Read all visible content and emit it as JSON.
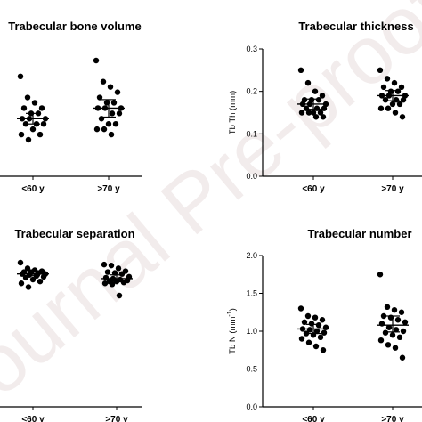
{
  "watermark": "Journal Pre-proof",
  "chart_data": [
    {
      "type": "scatter",
      "panel": "tl",
      "title": "Trabecular bone volume",
      "ylabel": "",
      "categories": [
        "<60 y",
        ">70 y"
      ],
      "ylim": [
        0,
        0.3
      ],
      "yticks": [],
      "series": [
        {
          "category": "<60 y",
          "values": [
            0.24,
            0.2,
            0.19,
            0.18,
            0.18,
            0.17,
            0.17,
            0.16,
            0.16,
            0.16,
            0.15,
            0.15,
            0.15,
            0.14,
            0.13,
            0.13,
            0.12
          ],
          "mean": 0.16,
          "sem": [
            0.15,
            0.17
          ]
        },
        {
          "category": ">70 y",
          "values": [
            0.27,
            0.23,
            0.22,
            0.21,
            0.2,
            0.19,
            0.19,
            0.18,
            0.18,
            0.18,
            0.17,
            0.17,
            0.16,
            0.15,
            0.15,
            0.14,
            0.14,
            0.13
          ],
          "mean": 0.18,
          "sem": [
            0.163,
            0.196
          ]
        }
      ]
    },
    {
      "type": "scatter",
      "panel": "tr",
      "title": "Trabecular thickness",
      "ylabel": "Tb Th (mm)",
      "categories": [
        "<60 y",
        ">70 y"
      ],
      "ylim": [
        0,
        0.3
      ],
      "yticks": [
        "0.0",
        "0.1",
        "0.2",
        "0.3"
      ],
      "series": [
        {
          "category": "<60 y",
          "values": [
            0.25,
            0.22,
            0.2,
            0.19,
            0.18,
            0.18,
            0.18,
            0.17,
            0.17,
            0.17,
            0.16,
            0.16,
            0.16,
            0.15,
            0.15,
            0.15,
            0.15,
            0.14,
            0.14
          ],
          "mean": 0.17,
          "sem": [
            0.158,
            0.182
          ]
        },
        {
          "category": ">70 y",
          "values": [
            0.25,
            0.23,
            0.22,
            0.21,
            0.21,
            0.2,
            0.2,
            0.19,
            0.19,
            0.19,
            0.18,
            0.18,
            0.18,
            0.17,
            0.17,
            0.16,
            0.16,
            0.15,
            0.14
          ],
          "mean": 0.19,
          "sem": [
            0.178,
            0.202
          ]
        }
      ]
    },
    {
      "type": "scatter",
      "panel": "bl",
      "title": "Trabecular separation",
      "ylabel": "",
      "categories": [
        "<60 y",
        ">70 y"
      ],
      "ylim": [
        0,
        1
      ],
      "yticks": [],
      "series": [
        {
          "category": "<60 y",
          "values": [
            0.82,
            0.76,
            0.74,
            0.73,
            0.72,
            0.72,
            0.71,
            0.7,
            0.7,
            0.69,
            0.68,
            0.67,
            0.66,
            0.64,
            0.62,
            0.6,
            0.56
          ],
          "mean": 0.7,
          "sem": [
            0.68,
            0.72
          ]
        },
        {
          "category": ">70 y",
          "values": [
            0.8,
            0.79,
            0.76,
            0.73,
            0.72,
            0.71,
            0.7,
            0.67,
            0.66,
            0.65,
            0.64,
            0.63,
            0.62,
            0.62,
            0.61,
            0.6,
            0.59,
            0.47
          ],
          "mean": 0.65,
          "sem": [
            0.62,
            0.69
          ]
        }
      ]
    },
    {
      "type": "scatter",
      "panel": "br",
      "title": "Trabecular number",
      "ylabel": "Tb N (mm",
      "ylabel_sup": "-1",
      "ylabel_end": ")",
      "categories": [
        "<60 y",
        ">70 y"
      ],
      "ylim": [
        0,
        2.0
      ],
      "yticks": [
        "0.0",
        "0.5",
        "1.0",
        "1.5",
        "2.0"
      ],
      "series": [
        {
          "category": "<60 y",
          "values": [
            1.3,
            1.2,
            1.18,
            1.15,
            1.12,
            1.1,
            1.08,
            1.05,
            1.03,
            1.02,
            1.0,
            0.98,
            0.97,
            0.95,
            0.92,
            0.9,
            0.85,
            0.8,
            0.75
          ],
          "mean": 1.03,
          "sem": [
            0.97,
            1.09
          ]
        },
        {
          "category": ">70 y",
          "values": [
            1.75,
            1.32,
            1.28,
            1.25,
            1.2,
            1.18,
            1.15,
            1.12,
            1.1,
            1.05,
            1.02,
            1.0,
            0.98,
            0.95,
            0.92,
            0.88,
            0.82,
            0.78,
            0.65
          ],
          "mean": 1.08,
          "sem": [
            0.99,
            1.2
          ]
        }
      ]
    }
  ]
}
